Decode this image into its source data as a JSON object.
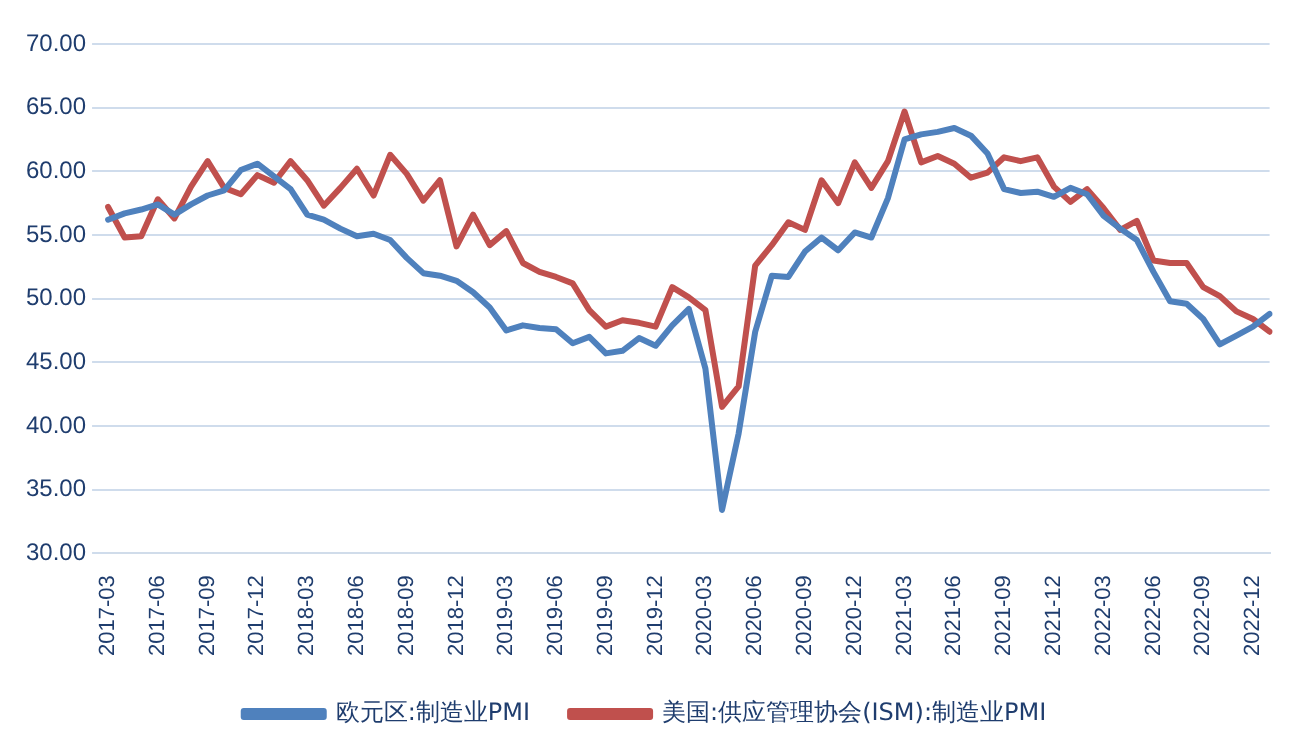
{
  "chart_data": {
    "type": "line",
    "categories": [
      "2017-03",
      null,
      null,
      "2017-06",
      null,
      null,
      "2017-09",
      null,
      null,
      "2017-12",
      null,
      null,
      "2018-03",
      null,
      null,
      "2018-06",
      null,
      null,
      "2018-09",
      null,
      null,
      "2018-12",
      null,
      null,
      "2019-03",
      null,
      null,
      "2019-06",
      null,
      null,
      "2019-09",
      null,
      null,
      "2019-12",
      null,
      null,
      "2020-03",
      null,
      null,
      "2020-06",
      null,
      null,
      "2020-09",
      null,
      null,
      "2020-12",
      null,
      null,
      "2021-03",
      null,
      null,
      "2021-06",
      null,
      null,
      "2021-09",
      null,
      null,
      "2021-12",
      null,
      null,
      "2022-03",
      null,
      null,
      "2022-06",
      null,
      null,
      "2022-09",
      null,
      null,
      "2022-12",
      null
    ],
    "series": [
      {
        "name": "欧元区:制造业PMI",
        "color": "#4f81bd",
        "values": [
          56.2,
          56.7,
          57.0,
          57.4,
          56.6,
          57.4,
          58.1,
          58.5,
          60.1,
          60.6,
          59.6,
          58.6,
          56.6,
          56.2,
          55.5,
          54.9,
          55.1,
          54.6,
          53.2,
          52.0,
          51.8,
          51.4,
          50.5,
          49.3,
          47.5,
          47.9,
          47.7,
          47.6,
          46.5,
          47.0,
          45.7,
          45.9,
          46.9,
          46.3,
          47.9,
          49.2,
          44.5,
          33.4,
          39.4,
          47.4,
          51.8,
          51.7,
          53.7,
          54.8,
          53.8,
          55.2,
          54.8,
          57.9,
          62.5,
          62.9,
          63.1,
          63.4,
          62.8,
          61.4,
          58.6,
          58.3,
          58.4,
          58.0,
          58.7,
          58.2,
          56.5,
          55.5,
          54.6,
          52.1,
          49.8,
          49.6,
          48.4,
          46.4,
          47.1,
          47.8,
          48.8
        ]
      },
      {
        "name": "美国:供应管理协会(ISM):制造业PMI",
        "color": "#c0504d",
        "values": [
          57.2,
          54.8,
          54.9,
          57.8,
          56.3,
          58.8,
          60.8,
          58.7,
          58.2,
          59.7,
          59.1,
          60.8,
          59.3,
          57.3,
          58.7,
          60.2,
          58.1,
          61.3,
          59.8,
          57.7,
          59.3,
          54.1,
          56.6,
          54.2,
          55.3,
          52.8,
          52.1,
          51.7,
          51.2,
          49.1,
          47.8,
          48.3,
          48.1,
          47.8,
          50.9,
          50.1,
          49.1,
          41.5,
          43.1,
          52.6,
          54.2,
          56.0,
          55.4,
          59.3,
          57.5,
          60.7,
          58.7,
          60.8,
          64.7,
          60.7,
          61.2,
          60.6,
          59.5,
          59.9,
          61.1,
          60.8,
          61.1,
          58.8,
          57.6,
          58.6,
          57.1,
          55.4,
          56.1,
          53.0,
          52.8,
          52.8,
          50.9,
          50.2,
          49.0,
          48.4,
          47.4
        ]
      }
    ],
    "ylim": [
      30,
      70
    ],
    "yticks": [
      {
        "value": 30,
        "label": "30.00"
      },
      {
        "value": 35,
        "label": "35.00"
      },
      {
        "value": 40,
        "label": "40.00"
      },
      {
        "value": 45,
        "label": "45.00"
      },
      {
        "value": 50,
        "label": "50.00"
      },
      {
        "value": 55,
        "label": "55.00"
      },
      {
        "value": 60,
        "label": "60.00"
      },
      {
        "value": 65,
        "label": "65.00"
      },
      {
        "value": 70,
        "label": "70.00"
      }
    ],
    "grid": "y",
    "legend": "bottom",
    "marker": "none",
    "line_style": "solid"
  }
}
